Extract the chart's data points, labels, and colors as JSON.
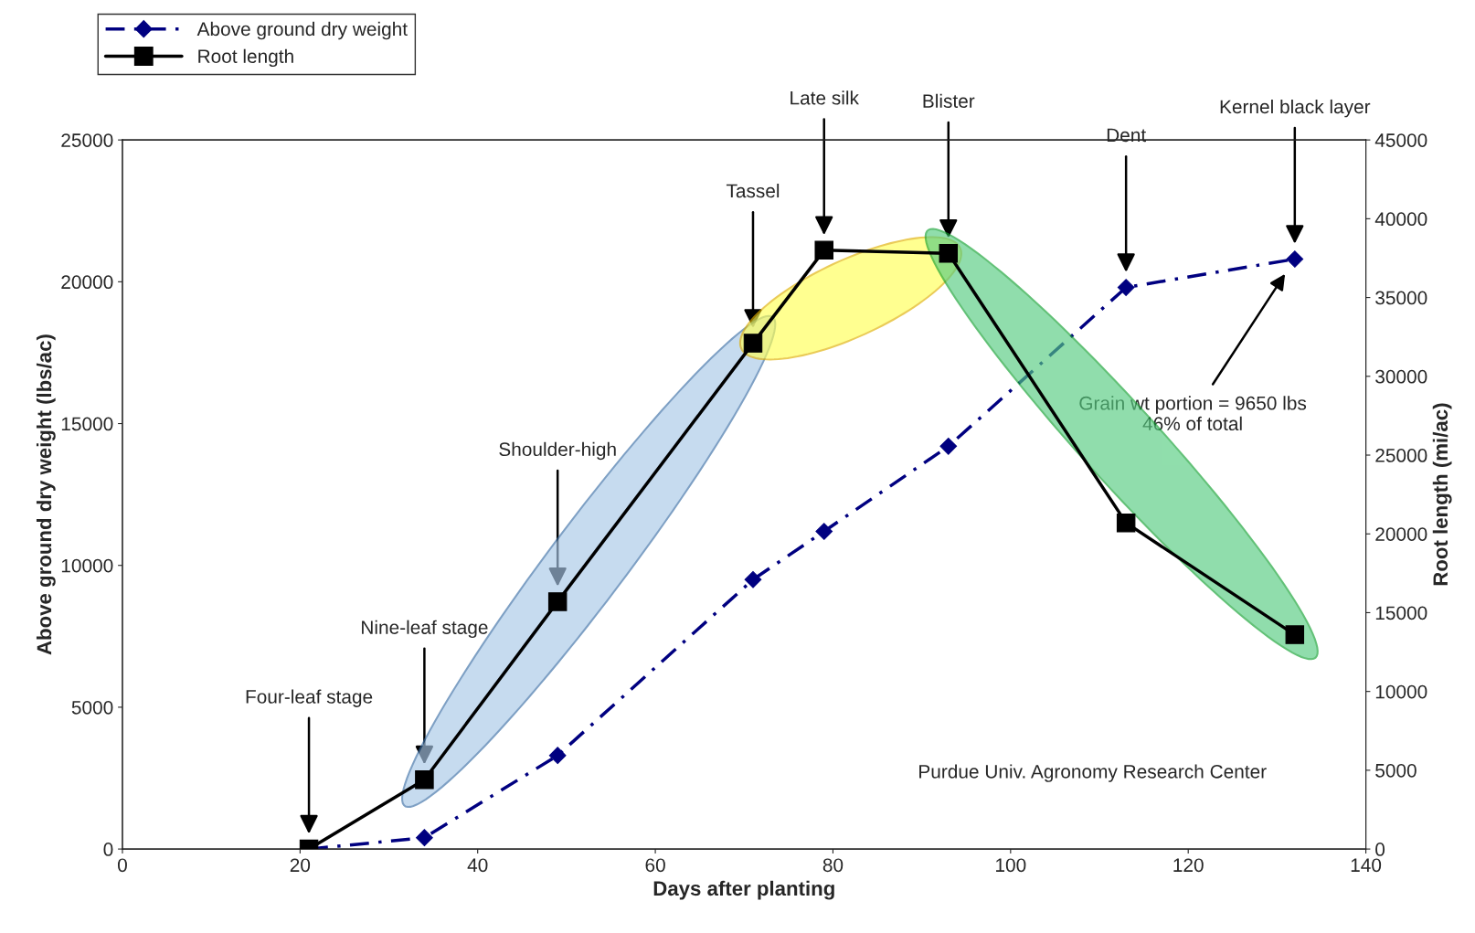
{
  "chart_data": {
    "type": "line",
    "xlabel": "Days after planting",
    "ylabel": "Above ground dry weight (lbs/ac)",
    "y2label": "Root length (mi/ac)",
    "xlim": [
      0,
      140
    ],
    "xticks": [
      0,
      20,
      40,
      60,
      80,
      100,
      120,
      140
    ],
    "ylim": [
      0,
      25000
    ],
    "yticks": [
      0,
      5000,
      10000,
      15000,
      20000,
      25000
    ],
    "y2lim": [
      0,
      45000
    ],
    "y2ticks": [
      0,
      5000,
      10000,
      15000,
      20000,
      25000,
      30000,
      35000,
      40000,
      45000
    ],
    "grid": false,
    "legend": "top left",
    "series": [
      {
        "name": "Above ground dry weight",
        "color": "#000080",
        "x": [
          21,
          34,
          49,
          71,
          79,
          93,
          113,
          132
        ],
        "values": [
          0,
          400,
          3300,
          9500,
          11200,
          14200,
          19800,
          20800
        ],
        "marker": "diamond",
        "line_style": "dashed"
      },
      {
        "name": "Root length",
        "color": "#000000",
        "axis": "y2",
        "x": [
          21,
          34,
          49,
          71,
          79,
          93,
          113,
          132
        ],
        "values": [
          0,
          4400,
          15700,
          32100,
          38000,
          37800,
          20700,
          13600
        ],
        "marker": "square",
        "line_style": "solid"
      }
    ],
    "annotations": [
      {
        "text": "Four-leaf stage",
        "x": 21
      },
      {
        "text": "Nine-leaf stage",
        "x": 34
      },
      {
        "text": "Shoulder-high",
        "x": 49
      },
      {
        "text": "Tassel",
        "x": 71
      },
      {
        "text": "Late silk",
        "x": 79
      },
      {
        "text": "Blister",
        "x": 93
      },
      {
        "text": "Dent",
        "x": 113
      },
      {
        "text": "Kernel black layer",
        "x": 132
      },
      "Grain wt portion = 9650 lbs\n46% of total",
      "Purdue Univ. Agronomy Research Center"
    ]
  }
}
